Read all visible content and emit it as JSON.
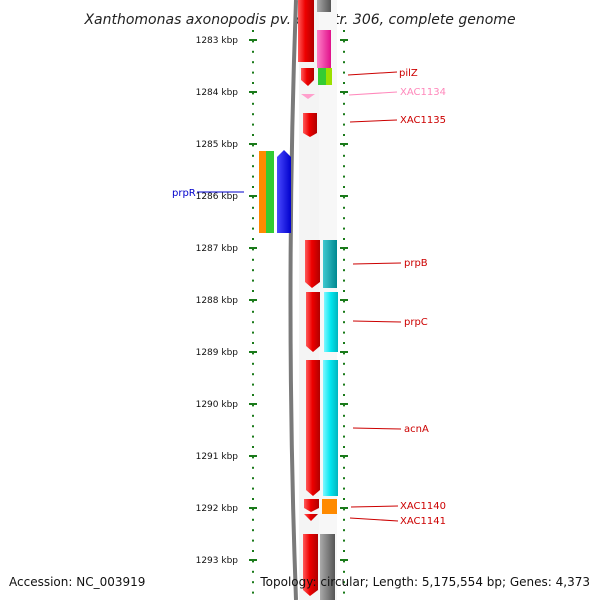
{
  "title": "Xanthomonas axonopodis pv. citri str. 306, complete genome",
  "footer": {
    "accession": "Accession: NC_003919",
    "topology": "Topology: circular; Length: 5,175,554 bp; Genes: 4,373"
  },
  "ruler": {
    "ticks": [
      "1283 kbp",
      "1284 kbp",
      "1285 kbp",
      "1286 kbp",
      "1287 kbp",
      "1288 kbp",
      "1289 kbp",
      "1290 kbp",
      "1291 kbp",
      "1292 kbp",
      "1293 kbp"
    ]
  },
  "gene_labels": [
    {
      "name": "pilZ",
      "color": "#cc0000"
    },
    {
      "name": "XAC1134",
      "color": "#ff88bb"
    },
    {
      "name": "XAC1135",
      "color": "#cc0000"
    },
    {
      "name": "prpR",
      "color": "#0000cc"
    },
    {
      "name": "prpB",
      "color": "#cc0000"
    },
    {
      "name": "prpC",
      "color": "#cc0000"
    },
    {
      "name": "acnA",
      "color": "#cc0000"
    },
    {
      "name": "XAC1140",
      "color": "#cc0000"
    },
    {
      "name": "XAC1141",
      "color": "#cc0000"
    }
  ],
  "colors": {
    "red": "#ee0000",
    "magenta": "#ff2fa0",
    "cyan": "#00e5ee",
    "teal": "#00a8b0",
    "orange": "#ff8a00",
    "green": "#33cc33",
    "blue": "#0000ee",
    "gray": "#888888",
    "tick_green": "#1a7a1a"
  }
}
